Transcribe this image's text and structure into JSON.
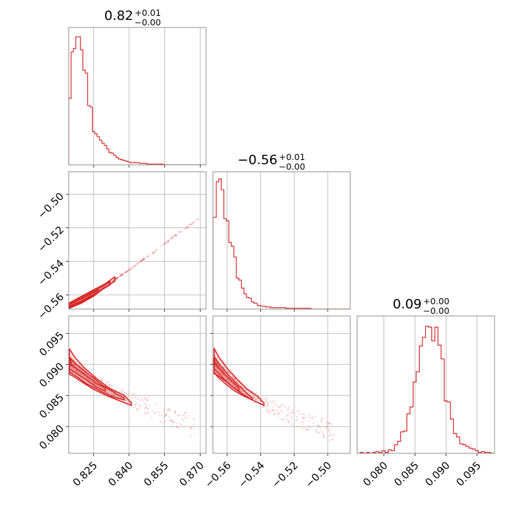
{
  "chart_data": {
    "type": "corner",
    "color": "#d62728",
    "grid": true,
    "panels": [
      {
        "id": "hist-0",
        "kind": "histogram",
        "row": 0,
        "col": 0,
        "title": {
          "value": "0.82",
          "sup": "+0.01",
          "sub": "−0.00"
        },
        "xlim": [
          0.8145,
          0.8725
        ],
        "bin_edges": [
          0.8145,
          0.8155,
          0.8165,
          0.8175,
          0.8185,
          0.8195,
          0.8205,
          0.8215,
          0.8225,
          0.8235,
          0.8245,
          0.8255,
          0.8265,
          0.8275,
          0.8285,
          0.8295,
          0.8305,
          0.8315,
          0.8325,
          0.8335,
          0.8345,
          0.8355,
          0.8365,
          0.8375,
          0.8385,
          0.8395,
          0.8405,
          0.8425,
          0.8445,
          0.8475,
          0.8505,
          0.8545,
          0.8605,
          0.8725
        ],
        "counts": [
          92,
          156,
          161,
          177,
          177,
          159,
          131,
          127,
          82,
          80,
          46,
          43,
          39,
          34,
          30,
          27,
          22,
          17,
          16,
          13,
          10,
          8,
          7,
          6,
          5,
          4,
          3,
          3,
          2,
          1,
          1,
          0,
          0
        ],
        "yticks": [],
        "ymax": 190
      },
      {
        "id": "hist-1",
        "kind": "histogram",
        "row": 1,
        "col": 1,
        "title": {
          "value": "−0.56",
          "sup": "+0.01",
          "sub": "−0.00"
        },
        "xlim": [
          -0.5685,
          -0.4865
        ],
        "bin_edges": [
          -0.5685,
          -0.5665,
          -0.565,
          -0.5635,
          -0.562,
          -0.5605,
          -0.559,
          -0.5575,
          -0.556,
          -0.5545,
          -0.553,
          -0.5515,
          -0.55,
          -0.5485,
          -0.547,
          -0.5455,
          -0.544,
          -0.542,
          -0.54,
          -0.537,
          -0.534,
          -0.53,
          -0.525,
          -0.518,
          -0.51,
          -0.4865
        ],
        "counts": [
          127,
          176,
          180,
          165,
          125,
          122,
          92,
          87,
          72,
          43,
          40,
          29,
          21,
          16,
          15,
          10,
          8,
          5,
          4,
          3,
          2,
          2,
          1,
          1,
          0
        ],
        "yticks": [],
        "ymax": 190
      },
      {
        "id": "hist-2",
        "kind": "histogram",
        "row": 2,
        "col": 2,
        "title": {
          "value": "0.09",
          "sup": "+0.00",
          "sub": "−0.00"
        },
        "xlim": [
          0.0757,
          0.0978
        ],
        "bin_edges": [
          0.0757,
          0.0762,
          0.0767,
          0.0772,
          0.0777,
          0.0782,
          0.0787,
          0.0792,
          0.0797,
          0.0802,
          0.0807,
          0.0812,
          0.0817,
          0.0822,
          0.0827,
          0.0832,
          0.0837,
          0.0842,
          0.0847,
          0.0852,
          0.0857,
          0.0862,
          0.0867,
          0.0872,
          0.0877,
          0.0882,
          0.0887,
          0.0892,
          0.0897,
          0.0902,
          0.0907,
          0.0912,
          0.0917,
          0.0922,
          0.0927,
          0.0932,
          0.0937,
          0.0942,
          0.0947,
          0.0952,
          0.0957,
          0.0962,
          0.0967,
          0.0972,
          0.0978
        ],
        "counts": [
          0,
          1,
          0,
          1,
          0,
          1,
          2,
          1,
          3,
          1,
          4,
          3,
          10,
          14,
          25,
          26,
          46,
          54,
          83,
          95,
          125,
          135,
          148,
          147,
          131,
          147,
          126,
          110,
          61,
          60,
          40,
          23,
          19,
          11,
          10,
          8,
          6,
          5,
          3,
          1,
          2,
          1,
          1,
          0
        ],
        "yticks": [],
        "ymax": 160
      },
      {
        "id": "scatter-1-0",
        "kind": "contour",
        "row": 1,
        "col": 0,
        "xlim": [
          0.8145,
          0.8725
        ],
        "ylim": [
          -0.5685,
          -0.4865
        ],
        "yticks": [
          -0.56,
          -0.54,
          -0.52,
          -0.5
        ],
        "yticklabels": [
          "−0.56",
          "−0.54",
          "−0.52",
          "−0.50"
        ],
        "ridge": [
          [
            0.815,
            -0.5668
          ],
          [
            0.82,
            -0.5633
          ],
          [
            0.825,
            -0.5593
          ],
          [
            0.83,
            -0.5551
          ],
          [
            0.835,
            -0.55
          ],
          [
            0.84,
            -0.5451
          ],
          [
            0.845,
            -0.5398
          ],
          [
            0.85,
            -0.5348
          ],
          [
            0.855,
            -0.5296
          ],
          [
            0.86,
            -0.524
          ],
          [
            0.865,
            -0.519
          ],
          [
            0.87,
            -0.5141
          ]
        ],
        "contours": [
          {
            "level": 0.5,
            "upper": [
              [
                0.8148,
                -0.5658
              ],
              [
                0.82,
                -0.5622
              ],
              [
                0.825,
                -0.5585
              ],
              [
                0.827,
                -0.557
              ]
            ],
            "lower": [
              [
                0.827,
                -0.5585
              ],
              [
                0.825,
                -0.56
              ],
              [
                0.82,
                -0.5639
              ],
              [
                0.8148,
                -0.567
              ]
            ]
          },
          {
            "level": 0.85,
            "upper": [
              [
                0.8148,
                -0.5653
              ],
              [
                0.82,
                -0.5614
              ],
              [
                0.825,
                -0.5577
              ],
              [
                0.829,
                -0.5548
              ],
              [
                0.832,
                -0.552
              ]
            ],
            "lower": [
              [
                0.832,
                -0.554
              ],
              [
                0.829,
                -0.5566
              ],
              [
                0.825,
                -0.5603
              ],
              [
                0.82,
                -0.5643
              ],
              [
                0.8148,
                -0.5675
              ]
            ]
          },
          {
            "level": 1.2,
            "upper": [
              [
                0.8148,
                -0.5648
              ],
              [
                0.82,
                -0.5608
              ],
              [
                0.825,
                -0.557
              ],
              [
                0.83,
                -0.5533
              ],
              [
                0.834,
                -0.5492
              ]
            ],
            "lower": [
              [
                0.834,
                -0.5518
              ],
              [
                0.83,
                -0.5555
              ],
              [
                0.825,
                -0.5608
              ],
              [
                0.82,
                -0.5649
              ],
              [
                0.8148,
                -0.568
              ]
            ]
          }
        ]
      },
      {
        "id": "scatter-2-0",
        "kind": "contour",
        "row": 2,
        "col": 0,
        "xlim": [
          0.8145,
          0.8725
        ],
        "ylim": [
          0.0757,
          0.0978
        ],
        "xticks": [
          0.825,
          0.84,
          0.855,
          0.87
        ],
        "xticklabels": [
          "0.825",
          "0.840",
          "0.855",
          "0.870"
        ],
        "yticks": [
          0.08,
          0.085,
          0.09,
          0.095
        ],
        "yticklabels": [
          "0.080",
          "0.085",
          "0.090",
          "0.095"
        ],
        "ridge": [
          [
            0.815,
            0.0905
          ],
          [
            0.818,
            0.0895
          ],
          [
            0.822,
            0.0885
          ],
          [
            0.827,
            0.0872
          ],
          [
            0.832,
            0.086
          ],
          [
            0.838,
            0.0848
          ],
          [
            0.845,
            0.0836
          ],
          [
            0.852,
            0.0824
          ],
          [
            0.86,
            0.0812
          ],
          [
            0.868,
            0.08
          ]
        ],
        "contours": [
          {
            "level": 0.5,
            "upper": [
              [
                0.8148,
                0.0902
              ],
              [
                0.818,
                0.0893
              ],
              [
                0.822,
                0.0882
              ],
              [
                0.826,
                0.087
              ],
              [
                0.83,
                0.0862
              ]
            ],
            "lower": [
              [
                0.83,
                0.0857
              ],
              [
                0.826,
                0.0864
              ],
              [
                0.822,
                0.0875
              ],
              [
                0.818,
                0.0885
              ],
              [
                0.8148,
                0.0893
              ]
            ]
          },
          {
            "level": 0.85,
            "upper": [
              [
                0.8148,
                0.0912
              ],
              [
                0.818,
                0.0899
              ],
              [
                0.823,
                0.0884
              ],
              [
                0.829,
                0.0866
              ],
              [
                0.835,
                0.0852
              ],
              [
                0.838,
                0.0846
              ]
            ],
            "lower": [
              [
                0.838,
                0.0843
              ],
              [
                0.833,
                0.0848
              ],
              [
                0.828,
                0.0857
              ],
              [
                0.822,
                0.0869
              ],
              [
                0.818,
                0.088
              ],
              [
                0.8148,
                0.0888
              ]
            ]
          },
          {
            "level": 1.2,
            "upper": [
              [
                0.8148,
                0.0925
              ],
              [
                0.817,
                0.0912
              ],
              [
                0.821,
                0.0895
              ],
              [
                0.826,
                0.0878
              ],
              [
                0.832,
                0.0861
              ],
              [
                0.838,
                0.085
              ],
              [
                0.841,
                0.0838
              ]
            ],
            "lower": [
              [
                0.841,
                0.0834
              ],
              [
                0.837,
                0.084
              ],
              [
                0.831,
                0.0849
              ],
              [
                0.825,
                0.086
              ],
              [
                0.82,
                0.0872
              ],
              [
                0.816,
                0.0882
              ],
              [
                0.8148,
                0.0884
              ]
            ]
          }
        ]
      },
      {
        "id": "scatter-2-1",
        "kind": "contour",
        "row": 2,
        "col": 1,
        "xlim": [
          -0.5685,
          -0.4865
        ],
        "ylim": [
          0.0757,
          0.0978
        ],
        "xticks": [
          -0.56,
          -0.54,
          -0.52,
          -0.5
        ],
        "xticklabels": [
          "−0.56",
          "−0.54",
          "−0.52",
          "−0.50"
        ],
        "yticks": [],
        "yticklabels": [],
        "ridge": [
          [
            -0.568,
            0.0905
          ],
          [
            -0.564,
            0.0894
          ],
          [
            -0.56,
            0.0884
          ],
          [
            -0.556,
            0.0872
          ],
          [
            -0.551,
            0.0861
          ],
          [
            -0.545,
            0.0849
          ],
          [
            -0.538,
            0.0838
          ],
          [
            -0.53,
            0.0826
          ],
          [
            -0.52,
            0.0815
          ],
          [
            -0.51,
            0.0804
          ],
          [
            -0.495,
            0.0792
          ]
        ],
        "contours": [
          {
            "level": 0.5,
            "upper": [
              [
                -0.5678,
                0.0903
              ],
              [
                -0.564,
                0.0892
              ],
              [
                -0.56,
                0.088
              ],
              [
                -0.556,
                0.087
              ],
              [
                -0.553,
                0.0862
              ]
            ],
            "lower": [
              [
                -0.553,
                0.0857
              ],
              [
                -0.557,
                0.0864
              ],
              [
                -0.561,
                0.0874
              ],
              [
                -0.565,
                0.0885
              ],
              [
                -0.5678,
                0.0893
              ]
            ]
          },
          {
            "level": 0.85,
            "upper": [
              [
                -0.5678,
                0.0913
              ],
              [
                -0.564,
                0.0898
              ],
              [
                -0.559,
                0.0882
              ],
              [
                -0.553,
                0.0866
              ],
              [
                -0.548,
                0.0853
              ],
              [
                -0.545,
                0.0846
              ]
            ],
            "lower": [
              [
                -0.545,
                0.0843
              ],
              [
                -0.55,
                0.0849
              ],
              [
                -0.556,
                0.0858
              ],
              [
                -0.562,
                0.0871
              ],
              [
                -0.566,
                0.0881
              ],
              [
                -0.5678,
                0.0888
              ]
            ]
          },
          {
            "level": 1.2,
            "upper": [
              [
                -0.5678,
                0.0926
              ],
              [
                -0.565,
                0.0912
              ],
              [
                -0.56,
                0.0894
              ],
              [
                -0.554,
                0.0876
              ],
              [
                -0.548,
                0.086
              ],
              [
                -0.542,
                0.0849
              ],
              [
                -0.538,
                0.0838
              ]
            ],
            "lower": [
              [
                -0.538,
                0.0834
              ],
              [
                -0.543,
                0.084
              ],
              [
                -0.549,
                0.0849
              ],
              [
                -0.555,
                0.086
              ],
              [
                -0.561,
                0.0873
              ],
              [
                -0.566,
                0.0883
              ],
              [
                -0.5678,
                0.0885
              ]
            ]
          }
        ]
      }
    ],
    "hist2_xaxis": {
      "xticks": [
        0.08,
        0.085,
        0.09,
        0.095
      ],
      "xticklabels": [
        "0.080",
        "0.085",
        "0.090",
        "0.095"
      ]
    }
  }
}
